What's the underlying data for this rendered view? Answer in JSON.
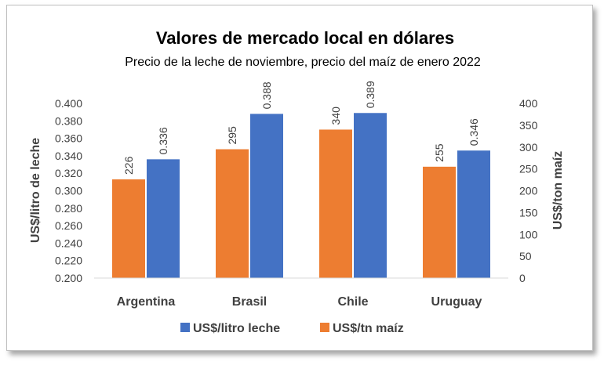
{
  "chart_data": {
    "type": "bar",
    "title": "Valores de mercado local en dólares",
    "subtitle": "Precio de la leche de noviembre, precio del maíz de enero 2022",
    "categories": [
      "Argentina",
      "Brasil",
      "Chile",
      "Uruguay"
    ],
    "series": [
      {
        "name": "US$/litro leche",
        "axis": "left",
        "color": "#4472c4",
        "values": [
          0.336,
          0.388,
          0.389,
          0.346
        ],
        "labels": [
          "0.336",
          "0.388",
          "0.389",
          "0.346"
        ]
      },
      {
        "name": "US$/tn maíz",
        "axis": "right",
        "color": "#ed7d31",
        "values": [
          226,
          295,
          340,
          255
        ],
        "labels": [
          "226",
          "295",
          "340",
          "255"
        ]
      }
    ],
    "ylabel_left": "US$/litro de leche",
    "ylabel_right": "US$/ton maíz",
    "ylim_left": [
      0.2,
      0.4
    ],
    "ylim_right": [
      0,
      400
    ],
    "yticks_left": [
      "0.200",
      "0.220",
      "0.240",
      "0.260",
      "0.280",
      "0.300",
      "0.320",
      "0.340",
      "0.360",
      "0.380",
      "0.400"
    ],
    "yticks_right": [
      "0",
      "50",
      "100",
      "150",
      "200",
      "250",
      "300",
      "350",
      "400"
    ],
    "grid": false,
    "legend_position": "bottom"
  }
}
